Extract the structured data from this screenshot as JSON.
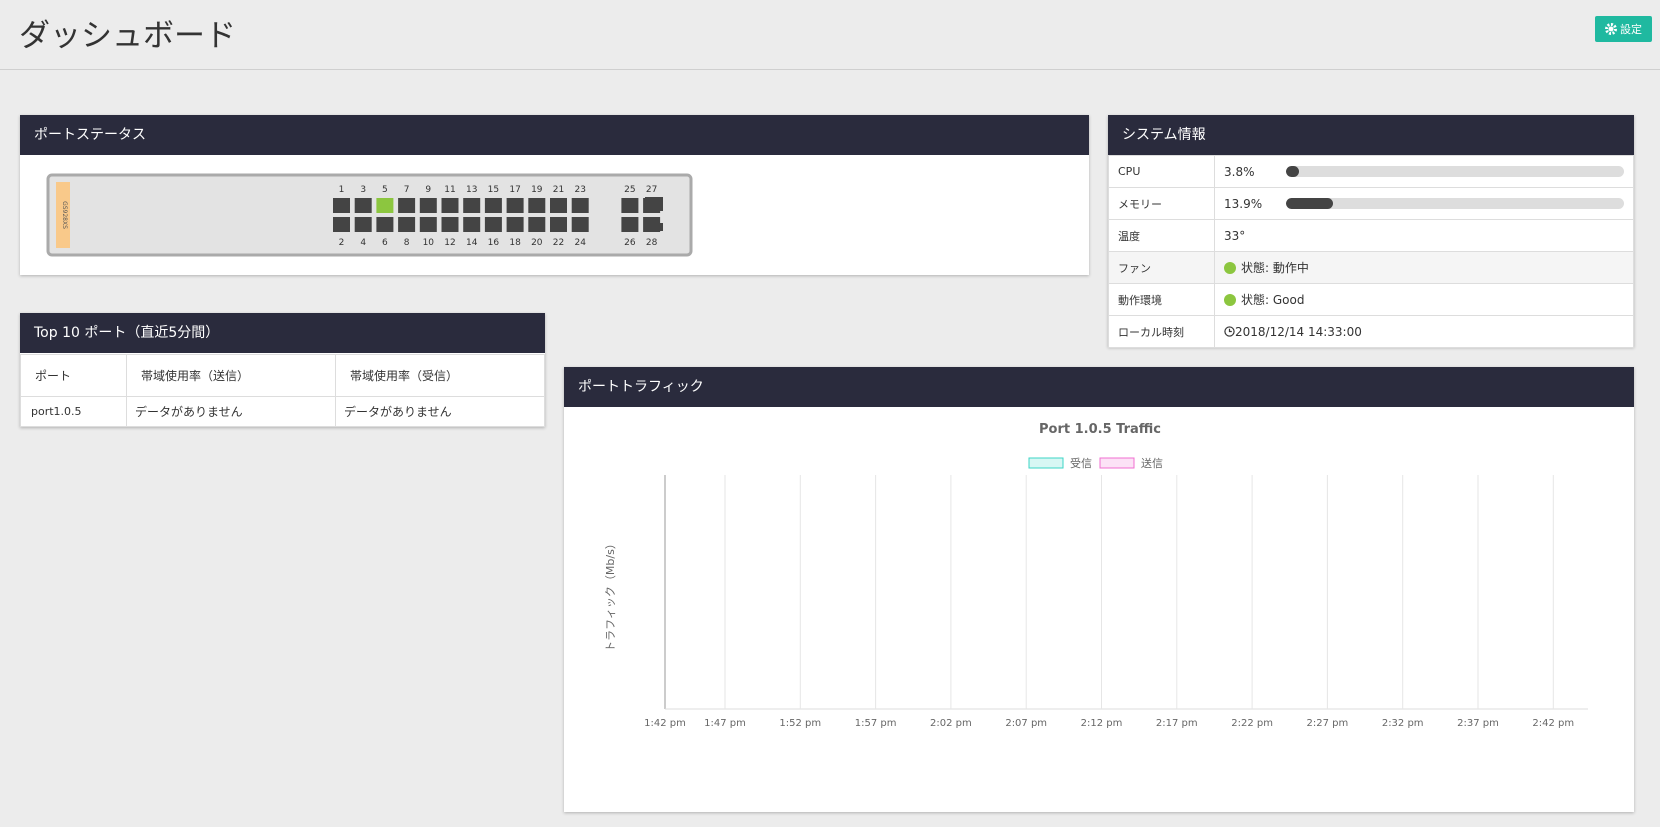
{
  "header": {
    "title": "ダッシュボード",
    "settings": "設定"
  },
  "port_status": {
    "title": "ポートステータス",
    "model": "GS928XS",
    "top": [
      {
        "label": "1",
        "up": false
      },
      {
        "label": "3",
        "up": false
      },
      {
        "label": "5",
        "up": true
      },
      {
        "label": "7",
        "up": false
      },
      {
        "label": "9",
        "up": false
      },
      {
        "label": "11",
        "up": false
      },
      {
        "label": "13",
        "up": false
      },
      {
        "label": "15",
        "up": false
      },
      {
        "label": "17",
        "up": false
      },
      {
        "label": "19",
        "up": false
      },
      {
        "label": "21",
        "up": false
      },
      {
        "label": "23",
        "up": false
      },
      {
        "label": "25",
        "up": false
      },
      {
        "label": "27",
        "up": false
      }
    ],
    "bottom": [
      {
        "label": "2",
        "up": false
      },
      {
        "label": "4",
        "up": false
      },
      {
        "label": "6",
        "up": false
      },
      {
        "label": "8",
        "up": false
      },
      {
        "label": "10",
        "up": false
      },
      {
        "label": "12",
        "up": false
      },
      {
        "label": "14",
        "up": false
      },
      {
        "label": "16",
        "up": false
      },
      {
        "label": "18",
        "up": false
      },
      {
        "label": "20",
        "up": false
      },
      {
        "label": "22",
        "up": false
      },
      {
        "label": "24",
        "up": false
      },
      {
        "label": "26",
        "up": false
      },
      {
        "label": "28",
        "up": false
      }
    ]
  },
  "top10": {
    "title": "Top 10 ポート（直近5分間）",
    "headers": [
      "ポート",
      "帯域使用率（送信）",
      "帯域使用率（受信）"
    ],
    "rows": [
      [
        "port1.0.5",
        "データがありません",
        "データがありません"
      ]
    ]
  },
  "system": {
    "title": "システム情報",
    "cpu": {
      "label": "CPU",
      "value": 3.8,
      "value_label": "3.8%"
    },
    "memory": {
      "label": "メモリー",
      "value": 13.9,
      "value_label": "13.9%"
    },
    "temperature": {
      "label": "温度",
      "value": "33°"
    },
    "fan": {
      "label": "ファン",
      "value": "状態: 動作中"
    },
    "environment": {
      "label": "動作環境",
      "value": "状態: Good"
    },
    "time": {
      "label": "ローカル時刻",
      "value": "2018/12/14 14:33:00"
    }
  },
  "traffic": {
    "title": "ポートトラフィック",
    "chart_data": {
      "type": "line",
      "title": "Port 1.0.5 Traffic",
      "y_label": "トラフィック（Mb/s）",
      "categories": [
        "1:42 pm",
        "1:47 pm",
        "1:52 pm",
        "1:57 pm",
        "2:02 pm",
        "2:07 pm",
        "2:12 pm",
        "2:17 pm",
        "2:22 pm",
        "2:27 pm",
        "2:32 pm",
        "2:37 pm",
        "2:42 pm"
      ],
      "series": [
        {
          "name": "受信",
          "color": "#3dd6c6",
          "values": [
            null,
            null,
            null,
            null,
            null,
            null,
            null,
            null,
            null,
            null,
            null,
            null,
            null
          ]
        },
        {
          "name": "送信",
          "color": "#f06fd0",
          "values": [
            null,
            null,
            null,
            null,
            null,
            null,
            null,
            null,
            null,
            null,
            null,
            null,
            null
          ]
        }
      ],
      "grid": true
    }
  }
}
